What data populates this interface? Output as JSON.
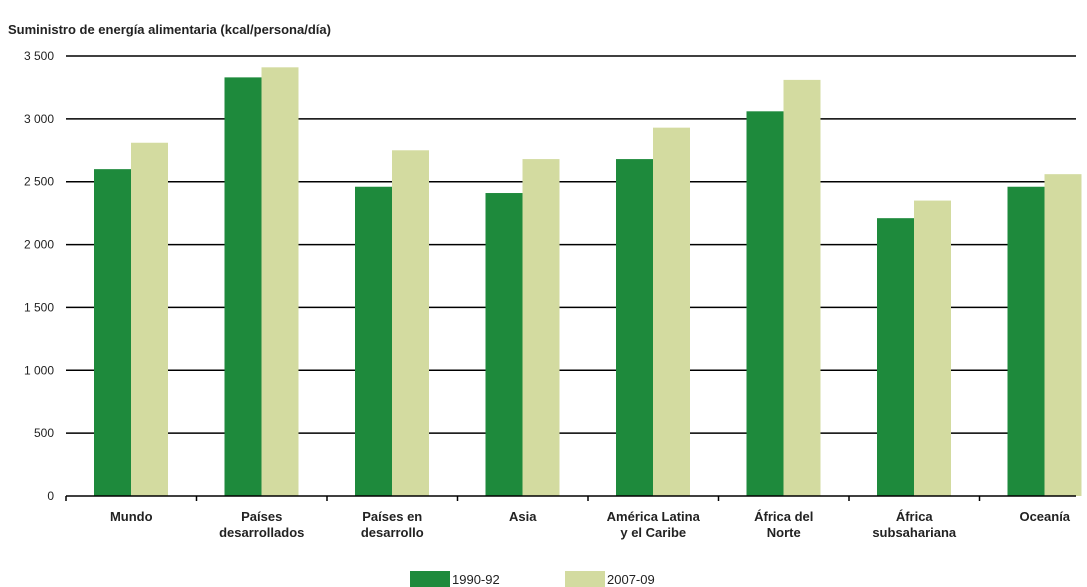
{
  "chart_data": {
    "type": "bar",
    "title": "Suministro de energía alimentaria (kcal/persona/día)",
    "xlabel": "",
    "ylabel": "",
    "ylim": [
      0,
      3500
    ],
    "yticks": [
      0,
      500,
      1000,
      1500,
      2000,
      2500,
      3000,
      3500
    ],
    "ytick_labels": [
      "0",
      "500",
      "1 000",
      "1 500",
      "2 000",
      "2 500",
      "3 000",
      "3 500"
    ],
    "grid": "horizontal",
    "legend_position": "bottom",
    "categories": [
      [
        "Mundo"
      ],
      [
        "Países",
        "desarrollados"
      ],
      [
        "Países en",
        "desarrollo"
      ],
      [
        "Asia"
      ],
      [
        "América Latina",
        "y el Caribe"
      ],
      [
        "África del",
        "Norte"
      ],
      [
        "África",
        "subsahariana"
      ],
      [
        "Oceanía"
      ]
    ],
    "series": [
      {
        "name": "1990-92",
        "color": "#1e8a3c",
        "values": [
          2600,
          3330,
          2460,
          2410,
          2680,
          3060,
          2210,
          2460
        ]
      },
      {
        "name": "2007-09",
        "color": "#d3dba0",
        "values": [
          2810,
          3410,
          2750,
          2680,
          2930,
          3310,
          2350,
          2560
        ]
      }
    ]
  }
}
